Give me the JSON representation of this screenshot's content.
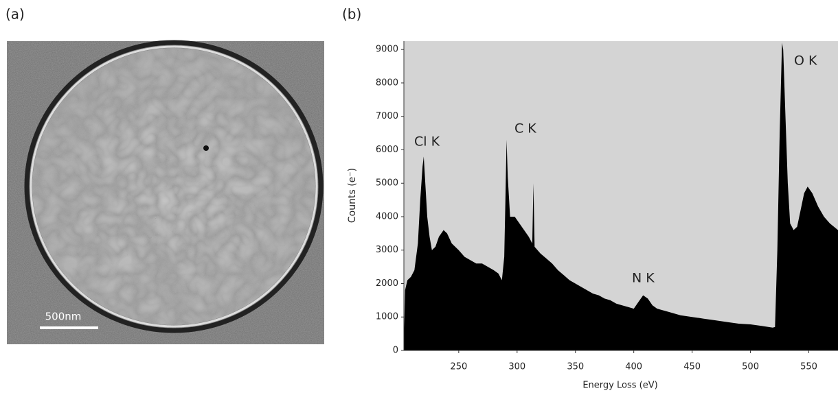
{
  "image_panel": {
    "label": "(a)",
    "scale_bar": "500nm"
  },
  "chart_data": {
    "type": "area",
    "panel_label": "(b)",
    "x_label": "Energy Loss (eV)",
    "y_label": "Counts (e⁻)",
    "color": "#000000",
    "background": "#d4d4d4",
    "xlim": [
      203,
      575
    ],
    "ylim": [
      0,
      9250
    ],
    "xticks": [
      250,
      300,
      350,
      400,
      450,
      500,
      550
    ],
    "yticks": [
      0,
      1000,
      2000,
      3000,
      4000,
      5000,
      6000,
      7000,
      8000,
      9000
    ],
    "annotations": [
      "Cl K",
      "C K",
      "N K",
      "O K"
    ],
    "x": [
      203,
      204,
      206,
      209,
      212,
      215,
      217,
      219,
      220,
      221,
      223,
      225,
      227,
      230,
      233,
      237,
      240,
      244,
      250,
      255,
      260,
      265,
      270,
      275,
      280,
      284,
      287,
      289,
      290,
      291,
      292,
      294,
      298,
      302,
      306,
      310,
      313,
      314,
      315,
      320,
      325,
      330,
      335,
      340,
      345,
      350,
      355,
      360,
      365,
      370,
      375,
      380,
      385,
      390,
      395,
      400,
      404,
      408,
      412,
      416,
      420,
      430,
      440,
      450,
      460,
      470,
      480,
      490,
      500,
      510,
      519,
      521,
      523,
      525,
      527,
      528,
      530,
      532,
      534,
      537,
      540,
      543,
      546,
      549,
      553,
      558,
      563,
      568,
      575
    ],
    "values": [
      200,
      1800,
      2100,
      2200,
      2400,
      3200,
      4500,
      5500,
      5800,
      5200,
      4000,
      3400,
      3000,
      3100,
      3400,
      3600,
      3500,
      3200,
      3000,
      2800,
      2700,
      2600,
      2600,
      2500,
      2400,
      2300,
      2100,
      2800,
      4500,
      6300,
      5200,
      4000,
      4000,
      3800,
      3600,
      3400,
      3200,
      5000,
      3100,
      2900,
      2750,
      2600,
      2400,
      2250,
      2100,
      2000,
      1900,
      1800,
      1700,
      1650,
      1550,
      1500,
      1400,
      1350,
      1300,
      1250,
      1450,
      1650,
      1550,
      1350,
      1250,
      1150,
      1050,
      1000,
      950,
      900,
      850,
      800,
      780,
      730,
      680,
      700,
      3000,
      6500,
      9200,
      9000,
      7000,
      5000,
      3800,
      3600,
      3700,
      4200,
      4700,
      4900,
      4700,
      4300,
      4000,
      3800,
      3600
    ]
  }
}
